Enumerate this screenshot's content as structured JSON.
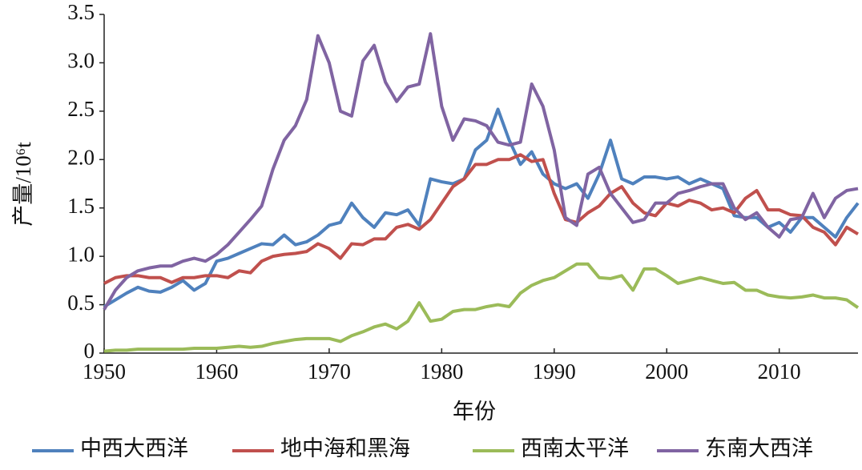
{
  "chart_data": {
    "type": "line",
    "x_label": "年份",
    "y_label": "产量/10⁶t",
    "x": [
      1950,
      1951,
      1952,
      1953,
      1954,
      1955,
      1956,
      1957,
      1958,
      1959,
      1960,
      1961,
      1962,
      1963,
      1964,
      1965,
      1966,
      1967,
      1968,
      1969,
      1970,
      1971,
      1972,
      1973,
      1974,
      1975,
      1976,
      1977,
      1978,
      1979,
      1980,
      1981,
      1982,
      1983,
      1984,
      1985,
      1986,
      1987,
      1988,
      1989,
      1990,
      1991,
      1992,
      1993,
      1994,
      1995,
      1996,
      1997,
      1998,
      1999,
      2000,
      2001,
      2002,
      2003,
      2004,
      2005,
      2006,
      2007,
      2008,
      2009,
      2010,
      2011,
      2012,
      2013,
      2014,
      2015,
      2016,
      2017
    ],
    "xlim": [
      1950,
      2017
    ],
    "xticks": [
      1950,
      1960,
      1970,
      1980,
      1990,
      2000,
      2010
    ],
    "ylim": [
      0,
      3.5
    ],
    "yticks": [
      0,
      0.5,
      {
        "value": 1,
        "label": "1.0"
      },
      1.5,
      {
        "value": 2,
        "label": "2.0"
      },
      2.5,
      {
        "value": 3,
        "label": "3.0"
      },
      3.5
    ],
    "series": [
      {
        "name": "中西大西洋",
        "color": "#4f81bd",
        "values": [
          0.48,
          0.55,
          0.62,
          0.68,
          0.64,
          0.63,
          0.68,
          0.75,
          0.65,
          0.72,
          0.95,
          0.98,
          1.03,
          1.08,
          1.13,
          1.12,
          1.22,
          1.12,
          1.15,
          1.22,
          1.32,
          1.35,
          1.55,
          1.4,
          1.3,
          1.45,
          1.43,
          1.48,
          1.32,
          1.8,
          1.77,
          1.75,
          1.8,
          2.1,
          2.2,
          2.52,
          2.2,
          1.95,
          2.08,
          1.85,
          1.75,
          1.7,
          1.75,
          1.6,
          1.85,
          2.2,
          1.8,
          1.75,
          1.82,
          1.82,
          1.8,
          1.82,
          1.75,
          1.8,
          1.75,
          1.7,
          1.42,
          1.4,
          1.4,
          1.3,
          1.35,
          1.25,
          1.4,
          1.4,
          1.3,
          1.2,
          1.4,
          1.55
        ]
      },
      {
        "name": "地中海和黑海",
        "color": "#c0504d",
        "values": [
          0.72,
          0.78,
          0.8,
          0.8,
          0.78,
          0.78,
          0.73,
          0.78,
          0.78,
          0.8,
          0.8,
          0.78,
          0.85,
          0.83,
          0.95,
          1.0,
          1.02,
          1.03,
          1.05,
          1.13,
          1.08,
          0.98,
          1.13,
          1.12,
          1.18,
          1.18,
          1.3,
          1.33,
          1.28,
          1.38,
          1.55,
          1.72,
          1.8,
          1.95,
          1.95,
          2.0,
          2.0,
          2.05,
          1.98,
          2.0,
          1.65,
          1.38,
          1.35,
          1.45,
          1.52,
          1.65,
          1.72,
          1.55,
          1.45,
          1.42,
          1.55,
          1.52,
          1.58,
          1.55,
          1.48,
          1.5,
          1.45,
          1.6,
          1.68,
          1.48,
          1.48,
          1.43,
          1.42,
          1.3,
          1.25,
          1.12,
          1.3,
          1.23
        ]
      },
      {
        "name": "西南太平洋",
        "color": "#9bbb59",
        "values": [
          0.02,
          0.03,
          0.03,
          0.04,
          0.04,
          0.04,
          0.04,
          0.04,
          0.05,
          0.05,
          0.05,
          0.06,
          0.07,
          0.06,
          0.07,
          0.1,
          0.12,
          0.14,
          0.15,
          0.15,
          0.15,
          0.12,
          0.18,
          0.22,
          0.27,
          0.3,
          0.25,
          0.33,
          0.52,
          0.33,
          0.35,
          0.43,
          0.45,
          0.45,
          0.48,
          0.5,
          0.48,
          0.62,
          0.7,
          0.75,
          0.78,
          0.85,
          0.92,
          0.92,
          0.78,
          0.77,
          0.8,
          0.65,
          0.87,
          0.87,
          0.8,
          0.72,
          0.75,
          0.78,
          0.75,
          0.72,
          0.73,
          0.65,
          0.65,
          0.6,
          0.58,
          0.57,
          0.58,
          0.6,
          0.57,
          0.57,
          0.55,
          0.47
        ]
      },
      {
        "name": "东南大西洋",
        "color": "#8064a2",
        "values": [
          0.45,
          0.65,
          0.78,
          0.85,
          0.88,
          0.9,
          0.9,
          0.95,
          0.98,
          0.95,
          1.02,
          1.12,
          1.25,
          1.38,
          1.52,
          1.9,
          2.2,
          2.35,
          2.62,
          3.28,
          3.0,
          2.5,
          2.45,
          3.02,
          3.18,
          2.8,
          2.6,
          2.75,
          2.78,
          3.3,
          2.55,
          2.2,
          2.42,
          2.4,
          2.35,
          2.18,
          2.15,
          2.18,
          2.78,
          2.55,
          2.1,
          1.4,
          1.32,
          1.85,
          1.92,
          1.65,
          1.5,
          1.35,
          1.38,
          1.55,
          1.55,
          1.65,
          1.68,
          1.72,
          1.75,
          1.75,
          1.5,
          1.38,
          1.45,
          1.3,
          1.2,
          1.38,
          1.4,
          1.65,
          1.4,
          1.6,
          1.68,
          1.7
        ]
      }
    ],
    "legend": "bottom"
  }
}
